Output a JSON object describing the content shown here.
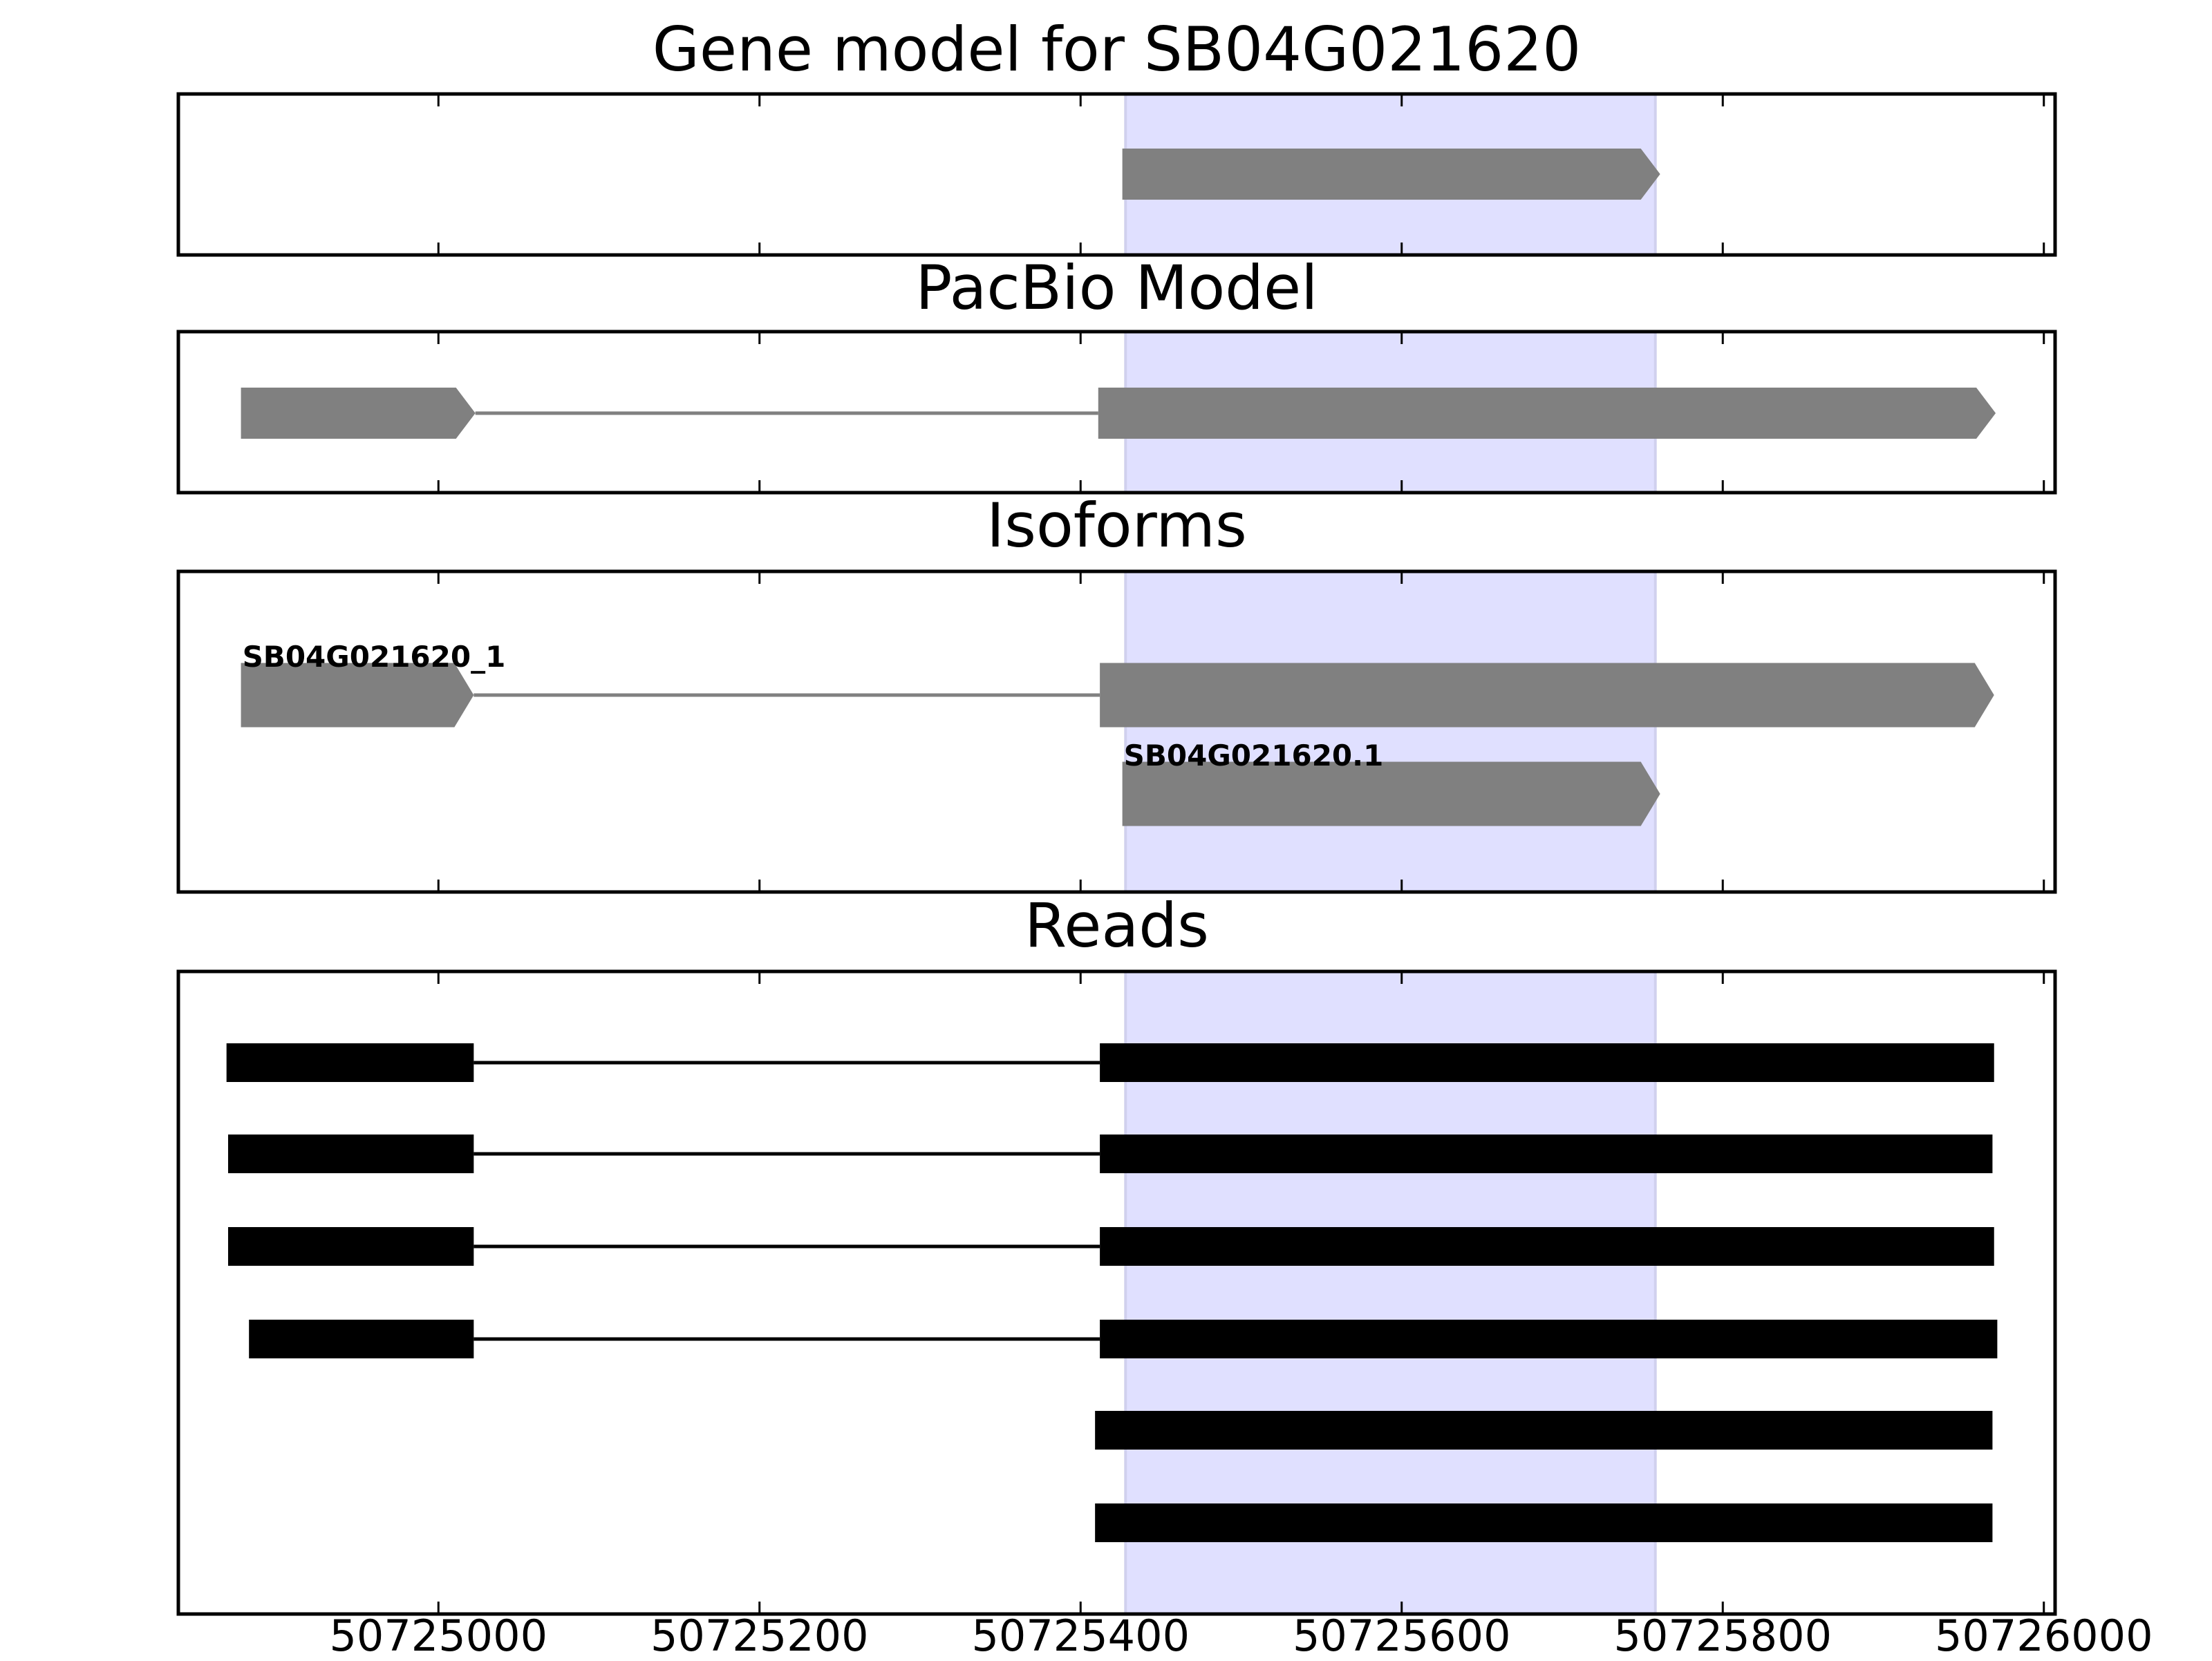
{
  "chart_data": {
    "type": "gene_track",
    "xlim": [
      50724838,
      50726007
    ],
    "xticks": [
      50725000,
      50725200,
      50725400,
      50725600,
      50725800,
      50726000
    ],
    "highlight": {
      "range": [
        50725428,
        50725758
      ],
      "color": "#e0e0ff"
    },
    "panels": [
      {
        "title": "Gene model for SB04G021620",
        "color": "#808080",
        "arrow": true,
        "features": [
          {
            "exons": [
              [
                50725426,
                50725761
              ]
            ]
          }
        ]
      },
      {
        "title": "PacBio Model",
        "color": "#808080",
        "arrow": true,
        "features": [
          {
            "exons": [
              [
                50724877,
                50725023
              ],
              [
                50725411,
                50725970
              ]
            ]
          }
        ]
      },
      {
        "title": "Isoforms",
        "color": "#808080",
        "arrow": true,
        "features": [
          {
            "name": "SB04G021620_1",
            "exons": [
              [
                50724877,
                50725022
              ],
              [
                50725412,
                50725969
              ]
            ]
          },
          {
            "name": "SB04G021620.1",
            "exons": [
              [
                50725426,
                50725761
              ]
            ]
          }
        ]
      },
      {
        "title": "Reads",
        "color": "#000000",
        "arrow": false,
        "features": [
          {
            "exons": [
              [
                50724868,
                50725022
              ],
              [
                50725412,
                50725969
              ]
            ]
          },
          {
            "exons": [
              [
                50724869,
                50725022
              ],
              [
                50725412,
                50725968
              ]
            ]
          },
          {
            "exons": [
              [
                50724869,
                50725022
              ],
              [
                50725412,
                50725969
              ]
            ]
          },
          {
            "exons": [
              [
                50724882,
                50725022
              ],
              [
                50725412,
                50725971
              ]
            ]
          },
          {
            "exons": [
              [
                50725409,
                50725968
              ]
            ]
          },
          {
            "exons": [
              [
                50725409,
                50725968
              ]
            ]
          }
        ]
      }
    ]
  }
}
